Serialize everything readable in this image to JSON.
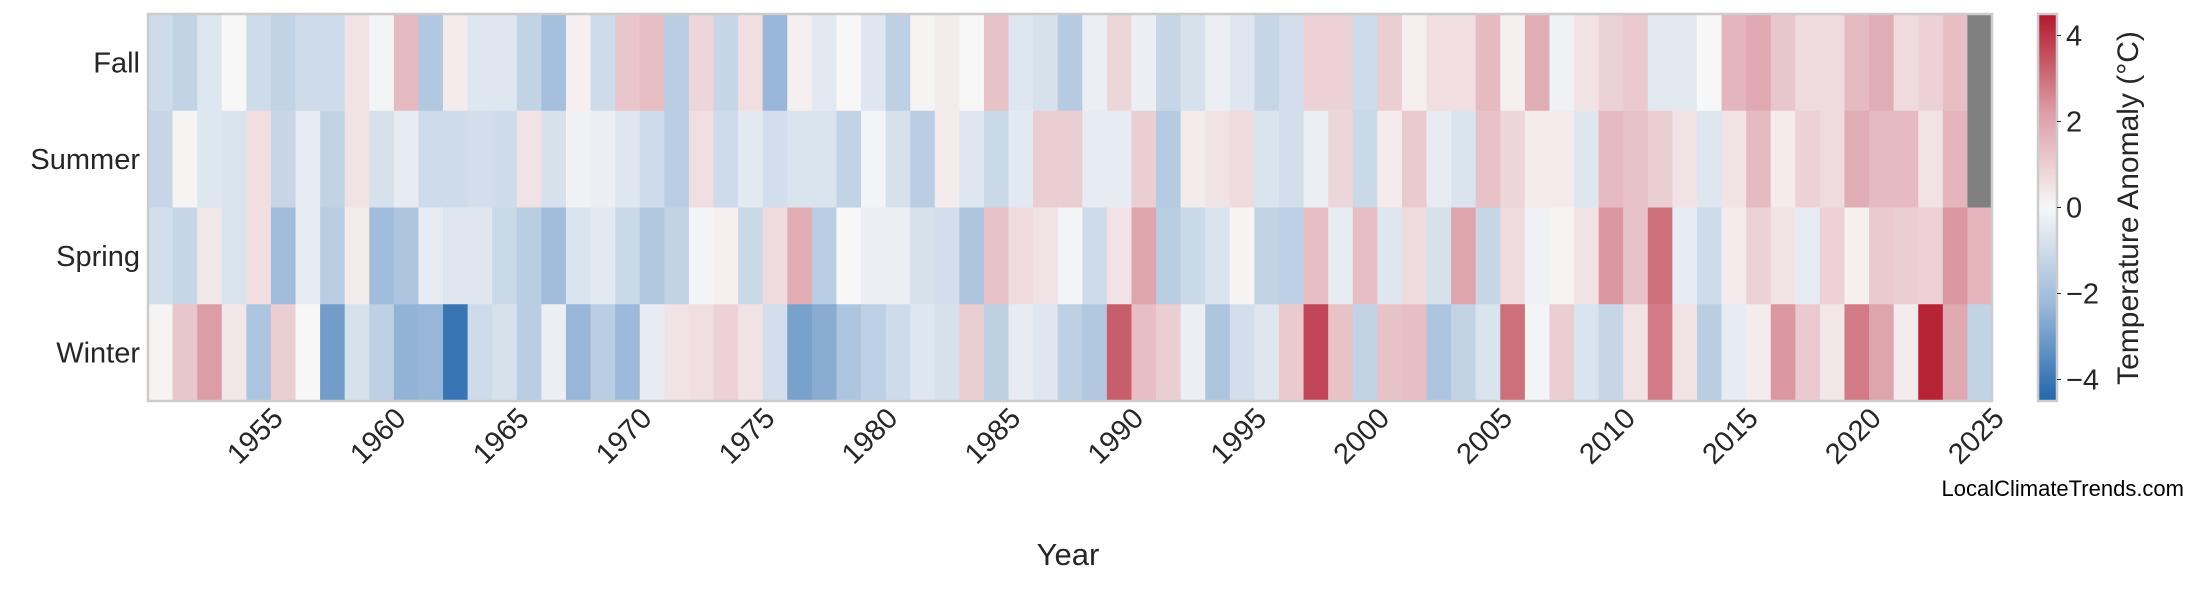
{
  "chart_data": {
    "type": "heatmap",
    "xlabel": "Year",
    "ylabel": "",
    "colorbar_label": "Temperature Anomaly (°C)",
    "colorbar_ticks": [
      "4",
      "2",
      "0",
      "−2",
      "−4"
    ],
    "colorbar_tick_values": [
      4,
      2,
      0,
      -2,
      -4
    ],
    "color_range": [
      -4.5,
      4.5
    ],
    "colormap": "blue-white-red (diverging)",
    "colors": {
      "low": "#2166ac",
      "mid": "#f7f7f7",
      "high": "#b2182b",
      "missing": "#808080"
    },
    "x_tick_labels": [
      "1955",
      "1960",
      "1965",
      "1970",
      "1975",
      "1980",
      "1985",
      "1990",
      "1995",
      "2000",
      "2005",
      "2010",
      "2015",
      "2020",
      "2025"
    ],
    "years": [
      1951,
      1952,
      1953,
      1954,
      1955,
      1956,
      1957,
      1958,
      1959,
      1960,
      1961,
      1962,
      1963,
      1964,
      1965,
      1966,
      1967,
      1968,
      1969,
      1970,
      1971,
      1972,
      1973,
      1974,
      1975,
      1976,
      1977,
      1978,
      1979,
      1980,
      1981,
      1982,
      1983,
      1984,
      1985,
      1986,
      1987,
      1988,
      1989,
      1990,
      1991,
      1992,
      1993,
      1994,
      1995,
      1996,
      1997,
      1998,
      1999,
      2000,
      2001,
      2002,
      2003,
      2004,
      2005,
      2006,
      2007,
      2008,
      2009,
      2010,
      2011,
      2012,
      2013,
      2014,
      2015,
      2016,
      2017,
      2018,
      2019,
      2020,
      2021,
      2022,
      2023,
      2024,
      2025
    ],
    "rows": [
      {
        "name": "Fall",
        "values": [
          -1.0,
          -1.3,
          -0.6,
          0.0,
          -1.0,
          -1.3,
          -1.0,
          -1.0,
          0.5,
          -0.1,
          1.5,
          -1.7,
          0.3,
          -0.6,
          -0.6,
          -1.3,
          -2.0,
          0.2,
          -1.0,
          1.2,
          1.4,
          -1.5,
          0.8,
          -1.2,
          0.6,
          -2.3,
          0.2,
          -0.5,
          0.0,
          -0.6,
          -1.4,
          0.1,
          0.3,
          0.0,
          1.3,
          -0.6,
          -0.8,
          -1.6,
          -0.3,
          0.8,
          -0.3,
          -1.2,
          -0.8,
          -0.3,
          -0.6,
          -1.2,
          -0.9,
          0.9,
          0.9,
          -1.0,
          1.0,
          0.2,
          0.6,
          0.6,
          1.5,
          0.2,
          1.8,
          -0.2,
          0.5,
          0.9,
          1.1,
          -0.5,
          -0.5,
          0.0,
          1.6,
          1.9,
          1.2,
          0.7,
          0.7,
          1.5,
          1.8,
          0.7,
          0.9,
          1.4,
          null
        ]
      },
      {
        "name": "Summer",
        "values": [
          -1.2,
          0.1,
          -0.6,
          -0.7,
          0.6,
          -1.2,
          -0.4,
          -1.3,
          0.5,
          -0.8,
          -0.4,
          -1.0,
          -1.0,
          -0.9,
          -1.0,
          0.5,
          -0.8,
          -0.2,
          -0.3,
          -0.6,
          -1.0,
          -1.5,
          0.6,
          -1.0,
          -0.5,
          -0.9,
          -0.7,
          -0.7,
          -1.3,
          -0.1,
          -0.8,
          -1.5,
          0.3,
          -0.6,
          -1.1,
          -0.5,
          1.0,
          1.0,
          -0.4,
          -0.4,
          1.0,
          -1.6,
          0.3,
          0.5,
          0.7,
          -0.7,
          -0.9,
          -0.3,
          0.8,
          -1.1,
          0.3,
          1.1,
          -0.4,
          -0.7,
          1.3,
          0.8,
          0.3,
          0.3,
          -0.6,
          1.5,
          1.3,
          1.0,
          0.5,
          -0.6,
          0.5,
          1.5,
          0.3,
          0.9,
          0.7,
          1.8,
          1.5,
          1.5,
          0.5,
          1.6,
          null
        ]
      },
      {
        "name": "Spring",
        "values": [
          -0.9,
          -1.2,
          0.4,
          -0.7,
          0.6,
          -2.1,
          -0.4,
          -1.5,
          0.3,
          -2.1,
          -1.8,
          -0.4,
          -0.6,
          -0.6,
          -1.1,
          -1.5,
          -2.1,
          -0.7,
          -0.5,
          -1.1,
          -1.7,
          -1.3,
          -0.1,
          0.2,
          -1.1,
          0.7,
          1.8,
          -1.5,
          0.0,
          -0.3,
          -0.3,
          -0.8,
          -0.9,
          -1.8,
          1.3,
          0.7,
          0.5,
          -0.1,
          -1.0,
          0.5,
          2.0,
          -1.5,
          -1.1,
          -0.7,
          0.1,
          -1.3,
          -1.4,
          1.4,
          -0.4,
          1.4,
          -0.6,
          0.7,
          -0.8,
          2.0,
          -1.2,
          0.7,
          -0.2,
          0.1,
          0.5,
          2.3,
          1.3,
          3.0,
          -0.4,
          -1.0,
          0.3,
          0.9,
          0.5,
          -0.4,
          0.9,
          0.2,
          1.1,
          1.0,
          0.9,
          2.3,
          1.6
        ]
      },
      {
        "name": "Winter",
        "values": [
          0.1,
          1.2,
          2.2,
          0.4,
          -1.8,
          1.0,
          0.0,
          -3.0,
          -0.8,
          -1.4,
          -2.4,
          -2.3,
          -4.1,
          -1.0,
          -0.8,
          -1.5,
          -0.3,
          -2.3,
          -1.5,
          -2.2,
          -0.4,
          0.5,
          0.6,
          0.9,
          0.5,
          -0.9,
          -2.9,
          -2.6,
          -1.8,
          -1.4,
          -1.0,
          -0.6,
          -0.8,
          1.0,
          -1.4,
          -0.4,
          -0.6,
          -1.4,
          -1.7,
          3.3,
          1.4,
          1.0,
          -0.3,
          -1.8,
          -0.9,
          -0.6,
          1.1,
          3.7,
          1.3,
          -1.3,
          1.3,
          1.4,
          -1.8,
          -1.3,
          -0.7,
          3.0,
          -0.1,
          1.0,
          -0.7,
          -1.2,
          0.5,
          2.8,
          0.5,
          -1.5,
          -0.4,
          0.3,
          2.3,
          1.1,
          0.4,
          2.8,
          2.0,
          0.3,
          4.3,
          1.9,
          -1.3
        ]
      }
    ],
    "watermark": "LocalClimateTrends.com"
  }
}
